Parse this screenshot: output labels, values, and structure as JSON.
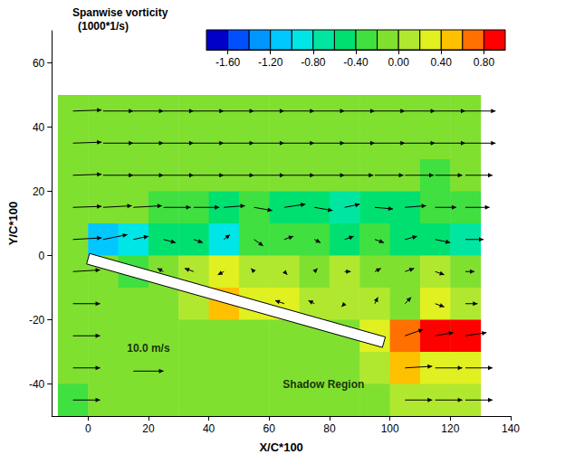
{
  "chart_data": {
    "type": "vector_field",
    "xlabel": "X/C*100",
    "ylabel": "Y/C*100",
    "xlim": [
      -12,
      140
    ],
    "xticks": [
      0,
      20,
      40,
      60,
      80,
      100,
      120,
      140
    ],
    "ylim": [
      -50,
      70
    ],
    "yticks": [
      -40,
      -20,
      0,
      20,
      40,
      60
    ],
    "field": {
      "x": [
        -5,
        5,
        15,
        25,
        35,
        45,
        55,
        65,
        75,
        85,
        95,
        105,
        115,
        125
      ],
      "y": [
        45,
        35,
        25,
        15,
        5,
        -5,
        -15,
        -25,
        -35,
        -45
      ],
      "vorticity": [
        [
          -0.2,
          -0.1,
          -0.1,
          -0.1,
          -0.1,
          -0.1,
          -0.1,
          -0.1,
          -0.1,
          -0.1,
          -0.1,
          -0.1,
          -0.1,
          -0.1
        ],
        [
          -0.2,
          -0.1,
          -0.1,
          -0.1,
          -0.1,
          -0.1,
          -0.1,
          -0.1,
          -0.1,
          -0.1,
          -0.1,
          -0.1,
          -0.1,
          -0.1
        ],
        [
          -0.2,
          -0.1,
          -0.1,
          -0.1,
          -0.1,
          -0.1,
          -0.1,
          -0.1,
          -0.1,
          -0.1,
          -0.1,
          -0.2,
          -0.3,
          -0.2
        ],
        [
          -0.1,
          -0.1,
          -0.2,
          -0.3,
          -0.3,
          -0.5,
          -0.4,
          -0.5,
          -0.6,
          -0.7,
          -0.5,
          -0.5,
          -0.4,
          -0.3
        ],
        [
          -0.1,
          -1.2,
          -1.0,
          -0.6,
          -0.6,
          -0.9,
          -0.4,
          -0.3,
          -0.4,
          -0.5,
          -0.3,
          -0.6,
          -0.5,
          -0.7
        ],
        [
          -0.1,
          -0.05,
          -0.3,
          -0.2,
          0.1,
          0.3,
          0.1,
          0.0,
          -0.2,
          0.0,
          -0.1,
          -0.2,
          0.0,
          -0.1
        ],
        [
          -0.1,
          -0.05,
          -0.05,
          -0.05,
          0.1,
          0.4,
          0.3,
          0.2,
          0.1,
          0.0,
          0.1,
          -0.1,
          0.3,
          0.0
        ],
        [
          -0.1,
          -0.05,
          -0.05,
          -0.05,
          -0.05,
          -0.05,
          -0.05,
          -0.05,
          -0.05,
          -0.05,
          0.2,
          0.7,
          0.8,
          0.8
        ],
        [
          -0.1,
          -0.05,
          -0.05,
          -0.05,
          -0.05,
          -0.05,
          -0.05,
          -0.05,
          -0.05,
          -0.05,
          0.0,
          0.4,
          0.3,
          0.3
        ],
        [
          -0.3,
          -0.05,
          -0.05,
          -0.05,
          -0.05,
          -0.05,
          -0.05,
          -0.05,
          -0.05,
          -0.05,
          -0.05,
          0.0,
          0.0,
          0.0
        ]
      ],
      "u": [
        [
          9.5,
          10,
          10,
          10,
          10,
          10,
          10,
          10,
          10,
          10,
          10,
          10,
          10,
          10
        ],
        [
          9.5,
          10,
          10,
          10,
          10,
          10,
          10,
          10,
          10,
          10,
          10,
          10,
          10,
          10
        ],
        [
          9.5,
          10,
          10,
          10,
          10,
          10,
          10,
          10,
          10,
          9.5,
          9.5,
          9.5,
          9,
          9
        ],
        [
          9.5,
          9.5,
          9.5,
          9,
          8.5,
          7,
          6,
          7,
          6,
          5,
          6,
          7,
          7,
          8
        ],
        [
          9.5,
          8,
          5,
          4,
          3,
          2,
          3,
          3,
          2,
          3,
          3,
          4,
          5,
          6
        ],
        [
          9,
          null,
          null,
          -2,
          -3,
          -2,
          -1,
          1,
          1,
          2,
          2,
          3,
          3,
          3
        ],
        [
          9,
          null,
          null,
          null,
          null,
          null,
          -2,
          -3,
          -2,
          -1,
          1,
          2,
          3,
          4
        ],
        [
          9,
          null,
          null,
          null,
          null,
          null,
          null,
          null,
          null,
          null,
          null,
          6,
          6,
          7
        ],
        [
          9,
          null,
          null,
          null,
          null,
          null,
          null,
          null,
          null,
          null,
          null,
          9,
          9,
          9
        ],
        [
          9,
          null,
          null,
          null,
          null,
          null,
          null,
          null,
          null,
          null,
          null,
          9,
          9,
          9
        ]
      ],
      "v": [
        [
          0.3,
          0,
          0,
          0,
          0,
          0,
          0,
          0,
          0,
          0,
          0,
          0,
          0,
          0
        ],
        [
          0.3,
          0,
          0,
          0,
          0,
          0,
          0,
          0,
          0,
          0,
          0,
          0,
          0,
          0
        ],
        [
          0.3,
          0,
          0,
          0,
          0,
          0,
          0,
          0,
          0,
          0,
          0,
          0,
          0,
          0
        ],
        [
          0.3,
          0.5,
          0.5,
          0,
          0,
          0.5,
          -1,
          1,
          -1,
          1,
          -0.5,
          0.5,
          0,
          0
        ],
        [
          0.5,
          1.5,
          1,
          -1,
          -1,
          1.5,
          -2,
          1,
          -1,
          1,
          -1,
          1,
          -1,
          0
        ],
        [
          0.5,
          null,
          null,
          1,
          1,
          -1,
          1,
          -1,
          1,
          0,
          1,
          1,
          -1,
          0
        ],
        [
          0,
          null,
          null,
          null,
          null,
          null,
          0.5,
          1,
          1,
          -1,
          2,
          2,
          -1,
          0
        ],
        [
          0,
          null,
          null,
          null,
          null,
          null,
          null,
          null,
          null,
          null,
          null,
          2,
          1,
          1
        ],
        [
          0,
          null,
          null,
          null,
          null,
          null,
          null,
          null,
          null,
          null,
          null,
          0.5,
          0,
          0
        ],
        [
          0,
          null,
          null,
          null,
          null,
          null,
          null,
          null,
          null,
          null,
          null,
          0,
          0,
          0
        ]
      ]
    },
    "colorbar": {
      "title": [
        "Spanwise vorticity",
        "(1000*1/s)"
      ],
      "range": [
        -1.8,
        1.0
      ],
      "ticks": [
        {
          "value": -1.6,
          "label": "-1.60"
        },
        {
          "value": -1.2,
          "label": "-1.20"
        },
        {
          "value": -0.8,
          "label": "-0.80"
        },
        {
          "value": -0.4,
          "label": "-0.40"
        },
        {
          "value": 0,
          "label": "0.00"
        },
        {
          "value": 0.4,
          "label": "0.40"
        },
        {
          "value": 0.8,
          "label": "0.80"
        }
      ],
      "colors": [
        "#0000c8",
        "#0050ff",
        "#0096ff",
        "#00c8ff",
        "#00e6e6",
        "#00e6a0",
        "#00e070",
        "#40e040",
        "#80e030",
        "#b0e830",
        "#e0f020",
        "#ffc000",
        "#ff7000",
        "#ff0000"
      ]
    },
    "plate": {
      "x": [
        0,
        98
      ],
      "y": [
        -1,
        -27
      ]
    },
    "reference_vector": {
      "value": 10,
      "label": "10.0 m/s",
      "x": 15,
      "y": -36,
      "label_x": 20,
      "label_y": -29
    },
    "annotations": [
      {
        "text": "Shadow Region",
        "x": 78,
        "y": -40
      }
    ]
  }
}
